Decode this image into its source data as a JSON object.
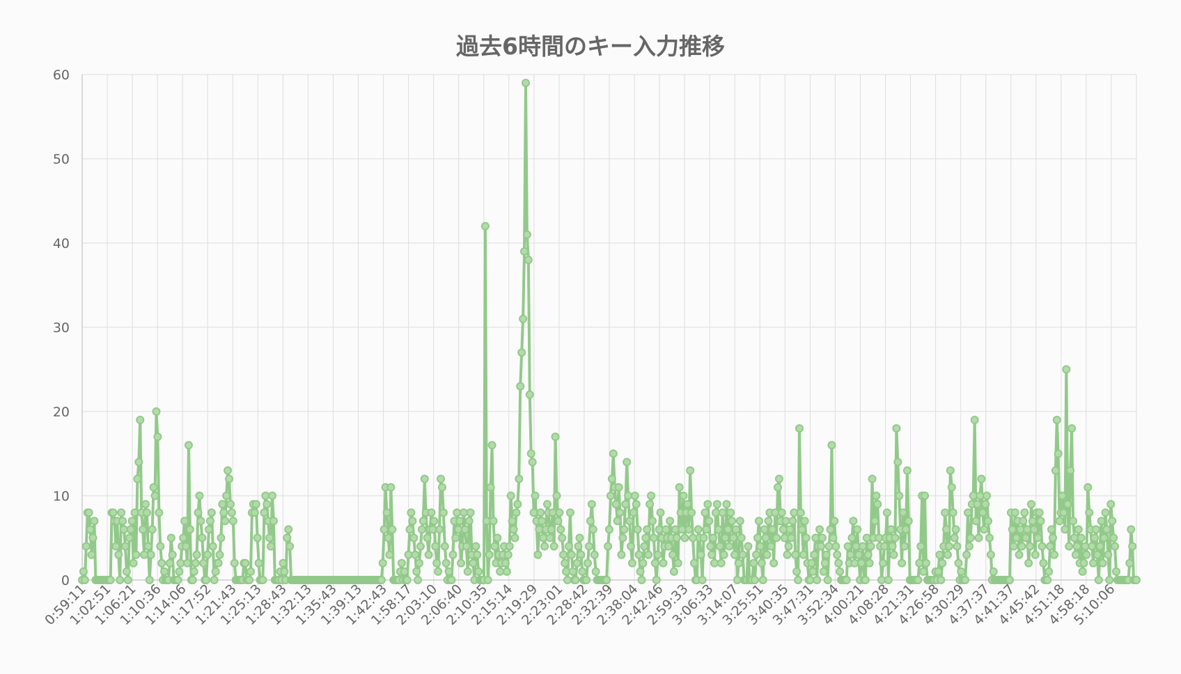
{
  "chart_data": {
    "type": "line",
    "title": "過去6時間のキー入力推移",
    "xlabel": "",
    "ylabel": "",
    "ylim": [
      0,
      60
    ],
    "yticks": [
      0,
      10,
      20,
      30,
      40,
      50,
      60
    ],
    "grid": true,
    "legend": "none",
    "colors": {
      "line": "#92c98a",
      "point_fill": "#b3dbaa",
      "grid": "#dddddd",
      "axis": "#cccccc",
      "text": "#666666",
      "background": "#fbfbfb"
    },
    "x_tick_labels": [
      "0:59:11",
      "1:02:51",
      "1:06:21",
      "1:10:36",
      "1:14:06",
      "1:17:52",
      "1:21:43",
      "1:25:13",
      "1:28:43",
      "1:32:13",
      "1:35:43",
      "1:39:13",
      "1:42:43",
      "1:58:17",
      "2:03:10",
      "2:06:40",
      "2:10:35",
      "2:15:14",
      "2:19:29",
      "2:23:01",
      "2:28:42",
      "2:32:39",
      "2:38:04",
      "2:42:46",
      "2:59:33",
      "3:06:33",
      "3:14:07",
      "3:25:51",
      "3:40:35",
      "3:47:31",
      "3:52:34",
      "4:00:21",
      "4:08:28",
      "4:21:31",
      "4:26:58",
      "4:30:29",
      "4:37:37",
      "4:41:37",
      "4:45:42",
      "4:51:18",
      "4:58:18",
      "5:10:06"
    ],
    "values": [
      0,
      1,
      0,
      4,
      8,
      8,
      6,
      3,
      5,
      7,
      0,
      0,
      0,
      0,
      0,
      0,
      0,
      0,
      0,
      0,
      0,
      0,
      8,
      8,
      7,
      4,
      7,
      3,
      0,
      8,
      7,
      6,
      4,
      1,
      0,
      5,
      6,
      7,
      2,
      8,
      3,
      12,
      14,
      19,
      8,
      6,
      3,
      9,
      8,
      4,
      0,
      3,
      6,
      11,
      10,
      20,
      17,
      8,
      4,
      2,
      0,
      1,
      0,
      0,
      0,
      2,
      5,
      3,
      0,
      0,
      0,
      0,
      1,
      2,
      4,
      5,
      7,
      4,
      2,
      16,
      6,
      0,
      0,
      1,
      2,
      3,
      8,
      10,
      7,
      5,
      2,
      0,
      0,
      3,
      6,
      7,
      8,
      4,
      0,
      1,
      2,
      2,
      3,
      5,
      9,
      8,
      7,
      10,
      13,
      12,
      9,
      8,
      7,
      2,
      0,
      0,
      0,
      0,
      0,
      0,
      2,
      2,
      0,
      0,
      0,
      1,
      8,
      9,
      8,
      9,
      5,
      2,
      0,
      0,
      0,
      8,
      10,
      9,
      7,
      5,
      4,
      10,
      7,
      0,
      0,
      0,
      0,
      1,
      0,
      2,
      1,
      0,
      5,
      6,
      4,
      0,
      0,
      0,
      0,
      0,
      0,
      0,
      0,
      0,
      0,
      0,
      0,
      0,
      0,
      0,
      0,
      0,
      0,
      0,
      0,
      0,
      0,
      0,
      0,
      0,
      0,
      0,
      0,
      0,
      0,
      0,
      0,
      0,
      0,
      0,
      0,
      0,
      0,
      0,
      0,
      0,
      0,
      0,
      0,
      0,
      0,
      0,
      0,
      0,
      0,
      0,
      0,
      0,
      0,
      0,
      0,
      0,
      0,
      0,
      0,
      0,
      0,
      0,
      0,
      0,
      0,
      0,
      0,
      2,
      6,
      11,
      8,
      5,
      3,
      11,
      6,
      0,
      0,
      0,
      0,
      0,
      1,
      2,
      0,
      1,
      0,
      0,
      3,
      6,
      8,
      7,
      5,
      3,
      1,
      0,
      2,
      4,
      6,
      7,
      12,
      8,
      5,
      3,
      6,
      8,
      6,
      7,
      4,
      2,
      1,
      6,
      12,
      11,
      8,
      4,
      2,
      0,
      1,
      0,
      0,
      3,
      7,
      5,
      8,
      6,
      7,
      2,
      4,
      8,
      6,
      4,
      1,
      7,
      8,
      3,
      2,
      0,
      4,
      3,
      1,
      0,
      0,
      0,
      0,
      42,
      7,
      0,
      3,
      11,
      16,
      7,
      4,
      2,
      5,
      3,
      1,
      2,
      3,
      4,
      2,
      1,
      3,
      4,
      10,
      7,
      6,
      5,
      8,
      9,
      12,
      23,
      27,
      31,
      39,
      59,
      41,
      38,
      22,
      15,
      14,
      8,
      10,
      7,
      3,
      6,
      8,
      7,
      5,
      4,
      6,
      9,
      8,
      5,
      6,
      8,
      4,
      17,
      10,
      7,
      8,
      6,
      5,
      3,
      2,
      1,
      0,
      4,
      8,
      3,
      1,
      0,
      0,
      2,
      4,
      5,
      3,
      1,
      0,
      0,
      0,
      2,
      4,
      7,
      9,
      6,
      3,
      1,
      0,
      0,
      0,
      0,
      0,
      0,
      0,
      0,
      4,
      6,
      10,
      12,
      15,
      11,
      9,
      7,
      11,
      8,
      3,
      5,
      6,
      9,
      14,
      10,
      7,
      4,
      2,
      8,
      10,
      9,
      6,
      3,
      1,
      0,
      2,
      4,
      5,
      6,
      3,
      9,
      10,
      7,
      5,
      2,
      0,
      3,
      6,
      8,
      5,
      2,
      4,
      6,
      5,
      4,
      7,
      5,
      3,
      1,
      6,
      5,
      2,
      11,
      8,
      6,
      10,
      5,
      8,
      9,
      6,
      13,
      8,
      5,
      2,
      0,
      0,
      6,
      5,
      3,
      0,
      5,
      8,
      6,
      9,
      7,
      4,
      3,
      5,
      2,
      8,
      9,
      6,
      4,
      2,
      8,
      3,
      5,
      9,
      6,
      4,
      8,
      7,
      5,
      3,
      6,
      0,
      2,
      7,
      5,
      3,
      0,
      0,
      0,
      4,
      0,
      0,
      0,
      2,
      0,
      3,
      5,
      7,
      4,
      2,
      0,
      6,
      5,
      3,
      7,
      8,
      4,
      6,
      2,
      8,
      5,
      11,
      12,
      7,
      8,
      6,
      5,
      7,
      3,
      4,
      6,
      5,
      7,
      8,
      3,
      1,
      0,
      18,
      8,
      6,
      3,
      7,
      5,
      2,
      0,
      0,
      2,
      1,
      3,
      5,
      0,
      4,
      6,
      4,
      5,
      1,
      2,
      3,
      0,
      4,
      6,
      16,
      5,
      7,
      4,
      3,
      2,
      1,
      0,
      0,
      0,
      0,
      0,
      4,
      2,
      3,
      5,
      7,
      2,
      4,
      6,
      3,
      0,
      2,
      4,
      0,
      0,
      5,
      3,
      2,
      4,
      12,
      5,
      7,
      10,
      9,
      5,
      4,
      0,
      2,
      4,
      5,
      8,
      0,
      5,
      6,
      4,
      3,
      5,
      18,
      14,
      10,
      6,
      2,
      8,
      4,
      6,
      13,
      7,
      0,
      0,
      0,
      0,
      0,
      0,
      0,
      2,
      4,
      10,
      1,
      10,
      2,
      0,
      0,
      0,
      0,
      0,
      0,
      1,
      0,
      1,
      3,
      0,
      2,
      4,
      8,
      6,
      3,
      4,
      13,
      11,
      8,
      5,
      6,
      4,
      2,
      0,
      1,
      0,
      0,
      0,
      3,
      8,
      4,
      5,
      9,
      10,
      19,
      7,
      9,
      5,
      10,
      12,
      8,
      6,
      9,
      10,
      7,
      5,
      3,
      0,
      1,
      0,
      0,
      0,
      0,
      0,
      0,
      0,
      0,
      0,
      0,
      0,
      0,
      8,
      6,
      4,
      8,
      5,
      7,
      3,
      6,
      4,
      7,
      8,
      5,
      6,
      2,
      4,
      9,
      7,
      6,
      3,
      8,
      5,
      8,
      7,
      4,
      2,
      0,
      0,
      0,
      1,
      4,
      6,
      5,
      3,
      13,
      19,
      15,
      7,
      8,
      10,
      8,
      6,
      25,
      9,
      4,
      13,
      18,
      7,
      5,
      3,
      4,
      6,
      2,
      5,
      1,
      2,
      4,
      3,
      11,
      8,
      6,
      4,
      2,
      5,
      6,
      3,
      0,
      4,
      7,
      2,
      5,
      8,
      6,
      3,
      0,
      9,
      7,
      5,
      4,
      1,
      0,
      0,
      0,
      0,
      0,
      0,
      0,
      0,
      0,
      2,
      6,
      4,
      0,
      0,
      0
    ]
  }
}
